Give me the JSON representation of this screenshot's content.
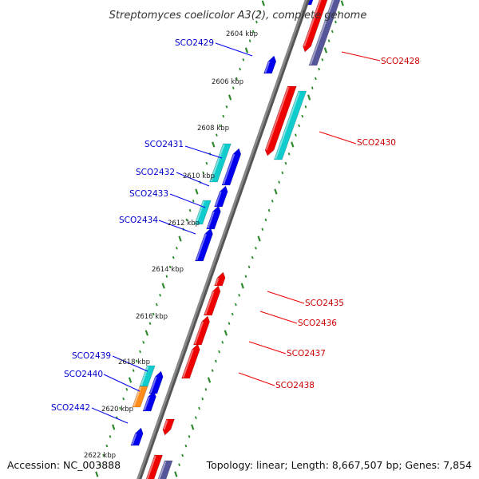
{
  "title": "Streptomyces coelicolor A3(2), complete genome",
  "accession": "Accession: NC_003888",
  "summary": "Topology: linear; Length: 8,667,507 bp; Genes: 7,854",
  "colors": {
    "backbone": "#888888",
    "tick": "#2d8a2d",
    "forward_gene": "#ee0000",
    "reverse_gene": "#0000ee",
    "cds_feature": "#11cccc",
    "rna_feature": "#ff8c1a",
    "misc_feature": "#555599",
    "forward_label": "#cc0000",
    "reverse_label": "#0000cc"
  },
  "scale_labels": [
    "2604 kbp",
    "2606 kbp",
    "2608 kbp",
    "2610 kbp",
    "2612 kbp",
    "2614 kbp",
    "2616 kbp",
    "2618 kbp",
    "2620 kbp",
    "2622 kbp"
  ],
  "genes_reverse": [
    {
      "label": "SCO2429"
    },
    {
      "label": "SCO2431"
    },
    {
      "label": "SCO2432"
    },
    {
      "label": "SCO2433"
    },
    {
      "label": "SCO2434"
    },
    {
      "label": "SCO2439"
    },
    {
      "label": "SCO2440"
    },
    {
      "label": "SCO2442"
    }
  ],
  "genes_forward": [
    {
      "label": "SCO2428"
    },
    {
      "label": "SCO2430"
    },
    {
      "label": "SCO2435"
    },
    {
      "label": "SCO2436"
    },
    {
      "label": "SCO2437"
    },
    {
      "label": "SCO2438"
    }
  ]
}
